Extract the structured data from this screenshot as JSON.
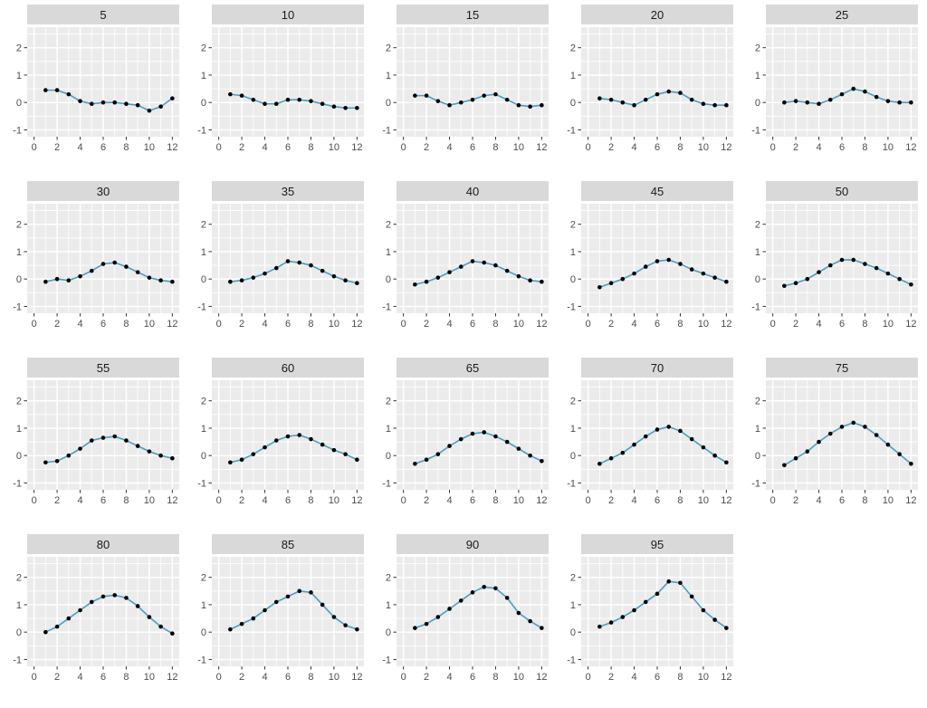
{
  "chart_data": {
    "type": "line",
    "layout": "facet-grid",
    "title": "",
    "xlabel": "",
    "ylabel": "",
    "x": [
      1,
      2,
      3,
      4,
      5,
      6,
      7,
      8,
      9,
      10,
      11,
      12
    ],
    "x_ticks": [
      0,
      2,
      4,
      6,
      8,
      10,
      12
    ],
    "y_ticks": [
      2,
      1,
      0,
      -1
    ],
    "x_minor": [
      1,
      3,
      5,
      7,
      9,
      11
    ],
    "y_minor": [
      -0.5,
      0.5,
      1.5,
      2.5
    ],
    "xlim": [
      -0.6,
      12.6
    ],
    "ylim": [
      -1.25,
      2.75
    ],
    "grid": true,
    "legend": "none",
    "colors": {
      "line": "#4a9dc2",
      "point": "#000000",
      "panel_bg": "#ebebeb",
      "strip_bg": "#d9d9d9",
      "gridline": "#ffffff",
      "tick_mark": "#333333",
      "tick_text": "#4d4d4d",
      "strip_text": "#1a1a1a"
    },
    "facets": [
      {
        "label": "5",
        "values": [
          0.45,
          0.45,
          0.3,
          0.05,
          -0.05,
          0.0,
          0.0,
          -0.05,
          -0.1,
          -0.3,
          -0.15,
          0.15
        ]
      },
      {
        "label": "10",
        "values": [
          0.3,
          0.25,
          0.1,
          -0.05,
          -0.05,
          0.1,
          0.1,
          0.05,
          -0.05,
          -0.15,
          -0.2,
          -0.2
        ]
      },
      {
        "label": "15",
        "values": [
          0.25,
          0.25,
          0.05,
          -0.1,
          0.0,
          0.1,
          0.25,
          0.3,
          0.1,
          -0.1,
          -0.15,
          -0.1
        ]
      },
      {
        "label": "20",
        "values": [
          0.15,
          0.1,
          0.0,
          -0.1,
          0.1,
          0.3,
          0.4,
          0.35,
          0.1,
          -0.05,
          -0.1,
          -0.1
        ]
      },
      {
        "label": "25",
        "values": [
          0.0,
          0.05,
          0.0,
          -0.05,
          0.1,
          0.3,
          0.5,
          0.4,
          0.2,
          0.05,
          0.0,
          0.0
        ]
      },
      {
        "label": "30",
        "values": [
          -0.1,
          0.0,
          -0.05,
          0.1,
          0.3,
          0.55,
          0.6,
          0.45,
          0.25,
          0.05,
          -0.05,
          -0.1
        ]
      },
      {
        "label": "35",
        "values": [
          -0.1,
          -0.05,
          0.05,
          0.2,
          0.4,
          0.65,
          0.6,
          0.5,
          0.3,
          0.1,
          -0.05,
          -0.15
        ]
      },
      {
        "label": "40",
        "values": [
          -0.2,
          -0.1,
          0.05,
          0.25,
          0.45,
          0.65,
          0.6,
          0.5,
          0.3,
          0.1,
          -0.05,
          -0.1
        ]
      },
      {
        "label": "45",
        "values": [
          -0.3,
          -0.15,
          0.0,
          0.2,
          0.45,
          0.65,
          0.7,
          0.55,
          0.35,
          0.2,
          0.05,
          -0.1
        ]
      },
      {
        "label": "50",
        "values": [
          -0.25,
          -0.15,
          0.0,
          0.25,
          0.5,
          0.7,
          0.7,
          0.55,
          0.4,
          0.2,
          0.0,
          -0.2
        ]
      },
      {
        "label": "55",
        "values": [
          -0.25,
          -0.2,
          0.0,
          0.25,
          0.55,
          0.65,
          0.7,
          0.55,
          0.35,
          0.15,
          0.0,
          -0.1
        ]
      },
      {
        "label": "60",
        "values": [
          -0.25,
          -0.15,
          0.05,
          0.3,
          0.55,
          0.7,
          0.75,
          0.6,
          0.4,
          0.2,
          0.05,
          -0.15
        ]
      },
      {
        "label": "65",
        "values": [
          -0.3,
          -0.15,
          0.05,
          0.35,
          0.6,
          0.8,
          0.85,
          0.7,
          0.5,
          0.25,
          0.0,
          -0.2
        ]
      },
      {
        "label": "70",
        "values": [
          -0.3,
          -0.1,
          0.1,
          0.4,
          0.7,
          0.95,
          1.05,
          0.9,
          0.6,
          0.3,
          0.0,
          -0.25
        ]
      },
      {
        "label": "75",
        "values": [
          -0.35,
          -0.1,
          0.15,
          0.5,
          0.8,
          1.05,
          1.2,
          1.05,
          0.75,
          0.4,
          0.05,
          -0.3
        ]
      },
      {
        "label": "80",
        "values": [
          0.0,
          0.2,
          0.5,
          0.8,
          1.1,
          1.3,
          1.35,
          1.25,
          0.95,
          0.55,
          0.2,
          -0.05
        ]
      },
      {
        "label": "85",
        "values": [
          0.1,
          0.3,
          0.5,
          0.8,
          1.1,
          1.3,
          1.5,
          1.45,
          1.0,
          0.55,
          0.25,
          0.1
        ]
      },
      {
        "label": "90",
        "values": [
          0.15,
          0.3,
          0.55,
          0.85,
          1.15,
          1.45,
          1.65,
          1.6,
          1.25,
          0.7,
          0.4,
          0.15
        ]
      },
      {
        "label": "95",
        "values": [
          0.2,
          0.35,
          0.55,
          0.8,
          1.1,
          1.4,
          1.85,
          1.8,
          1.3,
          0.8,
          0.45,
          0.15
        ]
      }
    ]
  }
}
